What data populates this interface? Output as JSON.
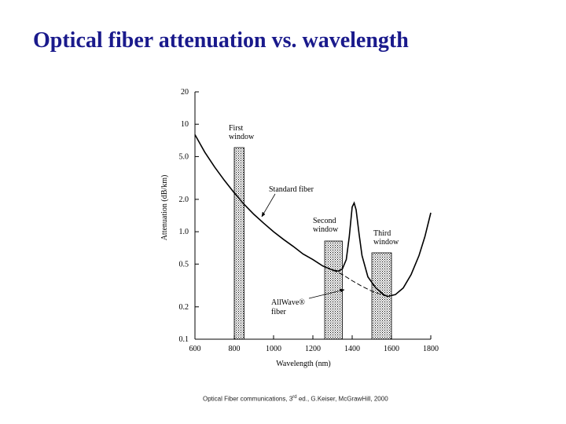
{
  "slide": {
    "title": "Optical fiber attenuation vs. wavelength",
    "citation_pre": "Optical Fiber communications, 3",
    "citation_sup": "rd",
    "citation_post": " ed., G.Keiser, McGrawHill, 2000"
  },
  "chart_data": {
    "type": "line",
    "title": "",
    "xlabel": "Wavelength (nm)",
    "ylabel": "Attenuation (dB/km)",
    "xlim": [
      600,
      1800
    ],
    "ylim": [
      0.1,
      20
    ],
    "yscale": "log",
    "x_ticks": [
      600,
      800,
      1000,
      1200,
      1400,
      1600,
      1800
    ],
    "x_tick_labels": [
      "600",
      "800",
      "1000",
      "1200",
      "1400",
      "1600",
      "1800"
    ],
    "y_ticks": [
      0.1,
      0.2,
      0.5,
      1.0,
      2.0,
      5.0,
      10,
      20
    ],
    "y_tick_labels": [
      "0.1",
      "0.2",
      "0.5",
      "1.0",
      "2.0",
      "5.0",
      "10",
      "20"
    ],
    "grid": false,
    "windows": [
      {
        "label": [
          "First",
          "window"
        ],
        "x_start": 800,
        "x_end": 850
      },
      {
        "label": [
          "Second",
          "window"
        ],
        "x_start": 1260,
        "x_end": 1350
      },
      {
        "label": [
          "Third",
          "window"
        ],
        "x_start": 1500,
        "x_end": 1600
      }
    ],
    "series": [
      {
        "name": "Standard fiber",
        "style": "solid",
        "points": [
          [
            600,
            8.0
          ],
          [
            650,
            5.5
          ],
          [
            700,
            4.0
          ],
          [
            750,
            3.0
          ],
          [
            800,
            2.3
          ],
          [
            850,
            1.8
          ],
          [
            900,
            1.45
          ],
          [
            950,
            1.2
          ],
          [
            1000,
            1.0
          ],
          [
            1050,
            0.85
          ],
          [
            1100,
            0.73
          ],
          [
            1150,
            0.62
          ],
          [
            1200,
            0.55
          ],
          [
            1250,
            0.48
          ],
          [
            1300,
            0.44
          ],
          [
            1330,
            0.43
          ],
          [
            1350,
            0.45
          ],
          [
            1370,
            0.55
          ],
          [
            1385,
            0.9
          ],
          [
            1400,
            1.7
          ],
          [
            1410,
            1.85
          ],
          [
            1420,
            1.6
          ],
          [
            1435,
            0.95
          ],
          [
            1450,
            0.6
          ],
          [
            1480,
            0.38
          ],
          [
            1520,
            0.3
          ],
          [
            1560,
            0.26
          ],
          [
            1580,
            0.25
          ],
          [
            1620,
            0.26
          ],
          [
            1660,
            0.3
          ],
          [
            1700,
            0.4
          ],
          [
            1740,
            0.6
          ],
          [
            1770,
            0.9
          ],
          [
            1800,
            1.5
          ]
        ]
      },
      {
        "name": "AllWave® fiber",
        "style": "dashed",
        "points": [
          [
            1300,
            0.44
          ],
          [
            1350,
            0.4
          ],
          [
            1400,
            0.35
          ],
          [
            1450,
            0.31
          ],
          [
            1500,
            0.28
          ],
          [
            1550,
            0.26
          ],
          [
            1580,
            0.25
          ]
        ]
      }
    ],
    "annotations": [
      {
        "text": "Standard fiber",
        "x": 1000,
        "y": 2.2
      },
      {
        "text": "AllWave®",
        "x": 1205,
        "y": 0.22
      },
      {
        "text": "fiber",
        "x": 1205,
        "y": 0.18
      }
    ]
  }
}
